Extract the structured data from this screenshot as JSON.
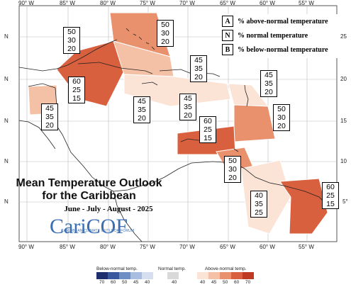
{
  "title_line1": "Mean Temperature Outlook",
  "title_line2": "for the Caribbean",
  "season": "June - July - August - 2025",
  "logo_text": "CariCOF",
  "logo_subtext": "CARIBBEAN CLIMATE OUTLOOK FORUM",
  "key": [
    {
      "letter": "A",
      "text": "% above-normal temperature"
    },
    {
      "letter": "N",
      "text": "% normal temperature"
    },
    {
      "letter": "B",
      "text": "% below-normal temperature"
    }
  ],
  "lon_labels": [
    "90° W",
    "85° W",
    "80° W",
    "75° W",
    "70° W",
    "65° W",
    "60° W",
    "55° W"
  ],
  "lat_labels_left": [
    "N",
    "N",
    "N",
    "N",
    "N"
  ],
  "lat_labels_right": [
    "25",
    "20",
    "15",
    "10",
    "5°"
  ],
  "legend": {
    "below_label": "Below-normal temp.",
    "normal_label": "Normal temp.",
    "above_label": "Above-normal temp.",
    "below_ticks": [
      "70",
      "60",
      "50",
      "45",
      "40"
    ],
    "normal_ticks": [
      "40"
    ],
    "above_ticks": [
      "40",
      "45",
      "50",
      "60",
      "70"
    ],
    "below_colors": [
      "#1f2f6e",
      "#39589e",
      "#6f8fc4",
      "#a9bde0",
      "#d5dff0"
    ],
    "normal_color": "#d9d9d9",
    "above_colors": [
      "#fbe3d6",
      "#f4c1a6",
      "#e9906d",
      "#d8603e",
      "#bf3a22"
    ]
  },
  "boxes": [
    {
      "a": "50",
      "n": "30",
      "b": "20"
    },
    {
      "a": "50",
      "n": "30",
      "b": "20"
    },
    {
      "a": "60",
      "n": "25",
      "b": "15"
    },
    {
      "a": "45",
      "n": "35",
      "b": "20"
    },
    {
      "a": "45",
      "n": "35",
      "b": "20"
    },
    {
      "a": "45",
      "n": "35",
      "b": "20"
    },
    {
      "a": "45",
      "n": "35",
      "b": "20"
    },
    {
      "a": "45",
      "n": "35",
      "b": "20"
    },
    {
      "a": "50",
      "n": "30",
      "b": "20"
    },
    {
      "a": "60",
      "n": "25",
      "b": "15"
    },
    {
      "a": "50",
      "n": "30",
      "b": "20"
    },
    {
      "a": "40",
      "n": "35",
      "b": "25"
    },
    {
      "a": "60",
      "n": "25",
      "b": "15"
    }
  ]
}
